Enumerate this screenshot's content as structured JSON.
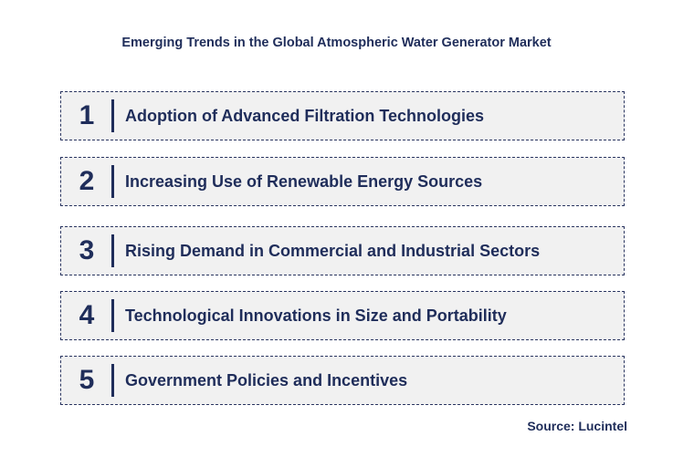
{
  "title": "Emerging Trends in the Global Atmospheric Water Generator Market",
  "trends": [
    {
      "number": "1",
      "label": "Adoption of Advanced Filtration Technologies"
    },
    {
      "number": "2",
      "label": "Increasing Use of Renewable Energy Sources"
    },
    {
      "number": "3",
      "label": "Rising Demand in Commercial and Industrial Sectors"
    },
    {
      "number": "4",
      "label": "Technological Innovations in Size and Portability"
    },
    {
      "number": "5",
      "label": "Government Policies and Incentives"
    }
  ],
  "source": "Source: Lucintel",
  "colors": {
    "text": "#1f2d5a",
    "box_bg": "#f1f1f1",
    "border": "#2a3560"
  }
}
